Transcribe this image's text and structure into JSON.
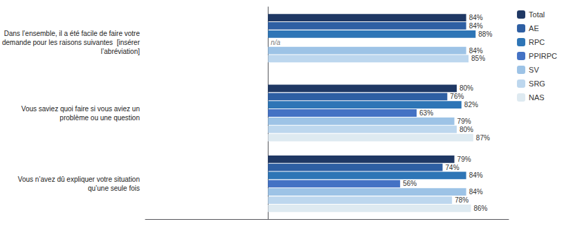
{
  "chart_data": {
    "type": "bar",
    "orientation": "horizontal",
    "categories": [
      "Dans l’ensemble, il a été facile de faire votre\ndemande pour les raisons suivantes  [insérer\nl’abréviation]",
      "Vous saviez quoi faire si vous aviez un\nproblème ou une question",
      "Vous n’avez dû expliquer votre situation\nqu’une seule fois"
    ],
    "series": [
      {
        "name": "Total",
        "color": "#1F3864",
        "values": [
          84,
          80,
          79
        ],
        "value_labels": [
          "84%",
          "80%",
          "79%"
        ]
      },
      {
        "name": "AE",
        "color": "#2E5FA3",
        "values": [
          84,
          76,
          74
        ],
        "value_labels": [
          "84%",
          "76%",
          "74%"
        ]
      },
      {
        "name": "RPC",
        "color": "#2E75B6",
        "values": [
          88,
          82,
          84
        ],
        "value_labels": [
          "88%",
          "82%",
          "84%"
        ]
      },
      {
        "name": "PPIRPC",
        "color": "#4472C4",
        "values": [
          null,
          63,
          56
        ],
        "value_labels": [
          null,
          "63%",
          "56%"
        ]
      },
      {
        "name": "SV",
        "color": "#9DC3E6",
        "values": [
          84,
          79,
          84
        ],
        "value_labels": [
          "84%",
          "79%",
          "84%"
        ]
      },
      {
        "name": "SRG",
        "color": "#BDD7EE",
        "values": [
          85,
          80,
          78
        ],
        "value_labels": [
          "85%",
          "80%",
          "78%"
        ]
      },
      {
        "name": "NAS",
        "color": "#DEEAF1",
        "values": [
          null,
          87,
          86
        ],
        "value_labels": [
          null,
          "87%",
          "86%"
        ]
      }
    ],
    "annotations": [
      {
        "text": "n/a",
        "series": "PPIRPC",
        "category": "Dans l’ensemble, il a été facile de faire votre\ndemande pour les raisons suivantes  [insérer\nl’abréviation]"
      }
    ],
    "xlim": [
      -52,
      102
    ],
    "xticks": [],
    "tick_labels": "y",
    "grid": false,
    "data_labels": true,
    "legend": "upper right"
  }
}
